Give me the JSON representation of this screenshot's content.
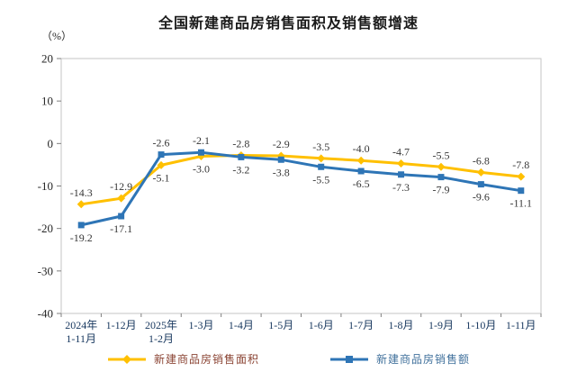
{
  "chart_data": {
    "type": "line",
    "title": "全国新建商品房销售面积及销售额增速",
    "ylabel": "（%）",
    "xlabel": "",
    "ylim": [
      -40,
      20
    ],
    "yticks": [
      20,
      10,
      0,
      -10,
      -20,
      -30,
      -40
    ],
    "grid": false,
    "legend_position": "bottom",
    "data_labels": true,
    "categories": [
      "2024年\n1-11月",
      "1-12月",
      "2025年\n1-2月",
      "1-3月",
      "1-4月",
      "1-5月",
      "1-6月",
      "1-7月",
      "1-8月",
      "1-9月",
      "1-10月",
      "1-11月"
    ],
    "series": [
      {
        "name": "新建商品房销售面积",
        "marker": "diamond",
        "color": "#FFC000",
        "legend_text_color": "#8B4434",
        "values": [
          -14.3,
          -12.9,
          -5.1,
          -3.0,
          -2.8,
          -2.9,
          -3.5,
          -4.0,
          -4.7,
          -5.5,
          -6.8,
          -7.8
        ]
      },
      {
        "name": "新建商品房销售额",
        "marker": "square",
        "color": "#2E75B6",
        "legend_text_color": "#41719C",
        "values": [
          -19.2,
          -17.1,
          -2.6,
          -2.1,
          -3.2,
          -3.8,
          -5.5,
          -6.5,
          -7.3,
          -7.9,
          -9.6,
          -11.1
        ]
      }
    ],
    "axis_colors": {
      "frame": "#C6C6C6",
      "tick": "#7F7F7F"
    }
  }
}
